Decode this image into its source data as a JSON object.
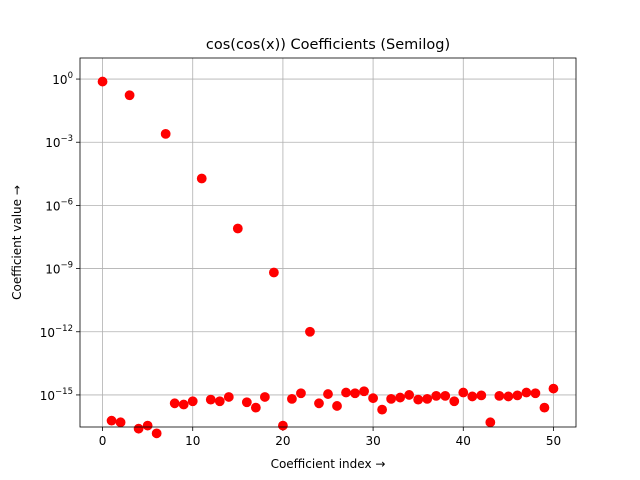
{
  "chart_data": {
    "type": "scatter",
    "title": "cos(cos(x)) Coefficients (Semilog)",
    "xlabel": "Coefficient index →",
    "ylabel": "Coefficient value →",
    "xlim": [
      -2.5,
      52.5
    ],
    "ylim": [
      3e-17,
      10
    ],
    "yscale": "log",
    "grid": true,
    "marker_color": "#ff0000",
    "x_ticks": [
      0,
      10,
      20,
      30,
      40,
      50
    ],
    "y_ticks": [
      {
        "value": 1,
        "label": "10^0"
      },
      {
        "value": 0.001,
        "label": "10^-3"
      },
      {
        "value": 1e-06,
        "label": "10^-6"
      },
      {
        "value": 1e-09,
        "label": "10^-9"
      },
      {
        "value": 1e-12,
        "label": "10^-12"
      },
      {
        "value": 1e-15,
        "label": "10^-15"
      }
    ],
    "x": [
      0,
      1,
      2,
      3,
      4,
      5,
      6,
      7,
      8,
      9,
      10,
      11,
      12,
      13,
      14,
      15,
      16,
      17,
      18,
      19,
      20,
      21,
      22,
      23,
      24,
      25,
      26,
      27,
      28,
      29,
      30,
      31,
      32,
      33,
      34,
      35,
      36,
      37,
      38,
      39,
      40,
      41,
      42,
      43,
      44,
      45,
      46,
      47,
      48,
      49,
      50
    ],
    "y": [
      0.76,
      6e-17,
      5e-17,
      0.17,
      2.5e-17,
      3.5e-17,
      1.5e-17,
      0.0025,
      4e-16,
      3.5e-16,
      5e-16,
      1.9e-05,
      6e-16,
      5e-16,
      8e-16,
      8e-08,
      4.5e-16,
      2.5e-16,
      8e-16,
      6.5e-10,
      3.5e-17,
      6.5e-16,
      1.2e-15,
      1e-12,
      4e-16,
      1.1e-15,
      3e-16,
      1.3e-15,
      1.2e-15,
      1.5e-15,
      7e-16,
      2e-16,
      6.5e-16,
      7.5e-16,
      1e-15,
      6e-16,
      6.5e-16,
      9e-16,
      9e-16,
      5e-16,
      1.3e-15,
      8.5e-16,
      9.5e-16,
      5e-17,
      9e-16,
      8.5e-16,
      9.5e-16,
      1.3e-15,
      1.2e-15,
      2.5e-16,
      2e-15
    ]
  }
}
